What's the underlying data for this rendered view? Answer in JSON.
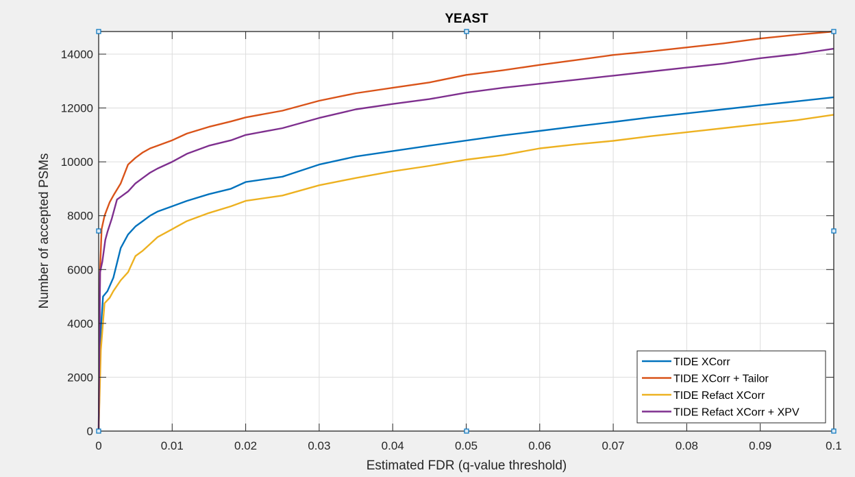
{
  "chart_data": {
    "type": "line",
    "title": "YEAST",
    "xlabel": "Estimated FDR (q-value threshold)",
    "ylabel": "Number of accepted PSMs",
    "xlim": [
      0,
      0.1
    ],
    "ylim": [
      0,
      14840
    ],
    "xticks": [
      0,
      0.01,
      0.02,
      0.03,
      0.04,
      0.05,
      0.06,
      0.07,
      0.08,
      0.09,
      0.1
    ],
    "xtick_labels": [
      "0",
      "0.01",
      "0.02",
      "0.03",
      "0.04",
      "0.05",
      "0.06",
      "0.07",
      "0.08",
      "0.09",
      "0.1"
    ],
    "yticks": [
      0,
      2000,
      4000,
      6000,
      8000,
      10000,
      12000,
      14000
    ],
    "ytick_labels": [
      "0",
      "2000",
      "4000",
      "6000",
      "8000",
      "10000",
      "12000",
      "14000"
    ],
    "grid": true,
    "legend_position": "southeast",
    "series": [
      {
        "name": "TIDE XCorr",
        "color": "#0072BD",
        "x": [
          0,
          0.0003,
          0.0006,
          0.0012,
          0.002,
          0.003,
          0.004,
          0.005,
          0.006,
          0.007,
          0.008,
          0.01,
          0.012,
          0.015,
          0.018,
          0.02,
          0.025,
          0.03,
          0.035,
          0.04,
          0.045,
          0.05,
          0.055,
          0.06,
          0.065,
          0.07,
          0.075,
          0.08,
          0.085,
          0.09,
          0.095,
          0.1
        ],
        "y": [
          0,
          3800,
          5000,
          5200,
          5700,
          6800,
          7300,
          7600,
          7800,
          8000,
          8150,
          8350,
          8550,
          8800,
          9000,
          9250,
          9450,
          9900,
          10200,
          10400,
          10600,
          10790,
          10980,
          11150,
          11320,
          11480,
          11650,
          11800,
          11950,
          12100,
          12250,
          12400
        ]
      },
      {
        "name": "TIDE XCorr + Tailor",
        "color": "#D95319",
        "x": [
          0,
          0.0002,
          0.0004,
          0.0008,
          0.0015,
          0.002,
          0.003,
          0.004,
          0.005,
          0.006,
          0.007,
          0.008,
          0.01,
          0.012,
          0.015,
          0.018,
          0.02,
          0.025,
          0.03,
          0.035,
          0.04,
          0.045,
          0.05,
          0.055,
          0.06,
          0.065,
          0.07,
          0.075,
          0.08,
          0.085,
          0.09,
          0.095,
          0.1
        ],
        "y": [
          0,
          6000,
          7500,
          8000,
          8500,
          8750,
          9200,
          9900,
          10150,
          10350,
          10500,
          10600,
          10800,
          11050,
          11300,
          11500,
          11650,
          11900,
          12270,
          12550,
          12750,
          12950,
          13230,
          13400,
          13600,
          13780,
          13970,
          14100,
          14250,
          14400,
          14580,
          14720,
          14840
        ]
      },
      {
        "name": "TIDE Refact XCorr",
        "color": "#EDB120",
        "x": [
          0,
          0.0003,
          0.0008,
          0.0015,
          0.002,
          0.003,
          0.004,
          0.005,
          0.006,
          0.007,
          0.008,
          0.01,
          0.012,
          0.015,
          0.018,
          0.02,
          0.025,
          0.03,
          0.035,
          0.04,
          0.045,
          0.05,
          0.055,
          0.06,
          0.065,
          0.07,
          0.075,
          0.08,
          0.085,
          0.09,
          0.095,
          0.1
        ],
        "y": [
          0,
          3000,
          4750,
          4950,
          5200,
          5600,
          5900,
          6500,
          6700,
          6950,
          7200,
          7500,
          7800,
          8100,
          8350,
          8550,
          8750,
          9130,
          9400,
          9650,
          9850,
          10080,
          10250,
          10500,
          10650,
          10780,
          10950,
          11100,
          11250,
          11400,
          11550,
          11750
        ]
      },
      {
        "name": "TIDE Refact XCorr + XPV",
        "color": "#7E2F8E",
        "x": [
          0,
          0.0002,
          0.0005,
          0.0009,
          0.0012,
          0.0018,
          0.0025,
          0.003,
          0.004,
          0.005,
          0.006,
          0.007,
          0.008,
          0.01,
          0.012,
          0.015,
          0.018,
          0.02,
          0.025,
          0.03,
          0.035,
          0.04,
          0.045,
          0.05,
          0.055,
          0.06,
          0.065,
          0.07,
          0.075,
          0.08,
          0.085,
          0.09,
          0.095,
          0.1
        ],
        "y": [
          0,
          5900,
          6300,
          7100,
          7400,
          7900,
          8600,
          8700,
          8900,
          9200,
          9400,
          9600,
          9750,
          10000,
          10300,
          10600,
          10800,
          11000,
          11250,
          11630,
          11950,
          12150,
          12330,
          12570,
          12750,
          12900,
          13050,
          13200,
          13350,
          13500,
          13650,
          13850,
          14000,
          14200
        ]
      }
    ]
  },
  "figure": {
    "background": "#f0f0f0",
    "axes_background": "#ffffff",
    "grid_color": "#dcdcdc",
    "selection_handle_color": "#0072BD"
  }
}
